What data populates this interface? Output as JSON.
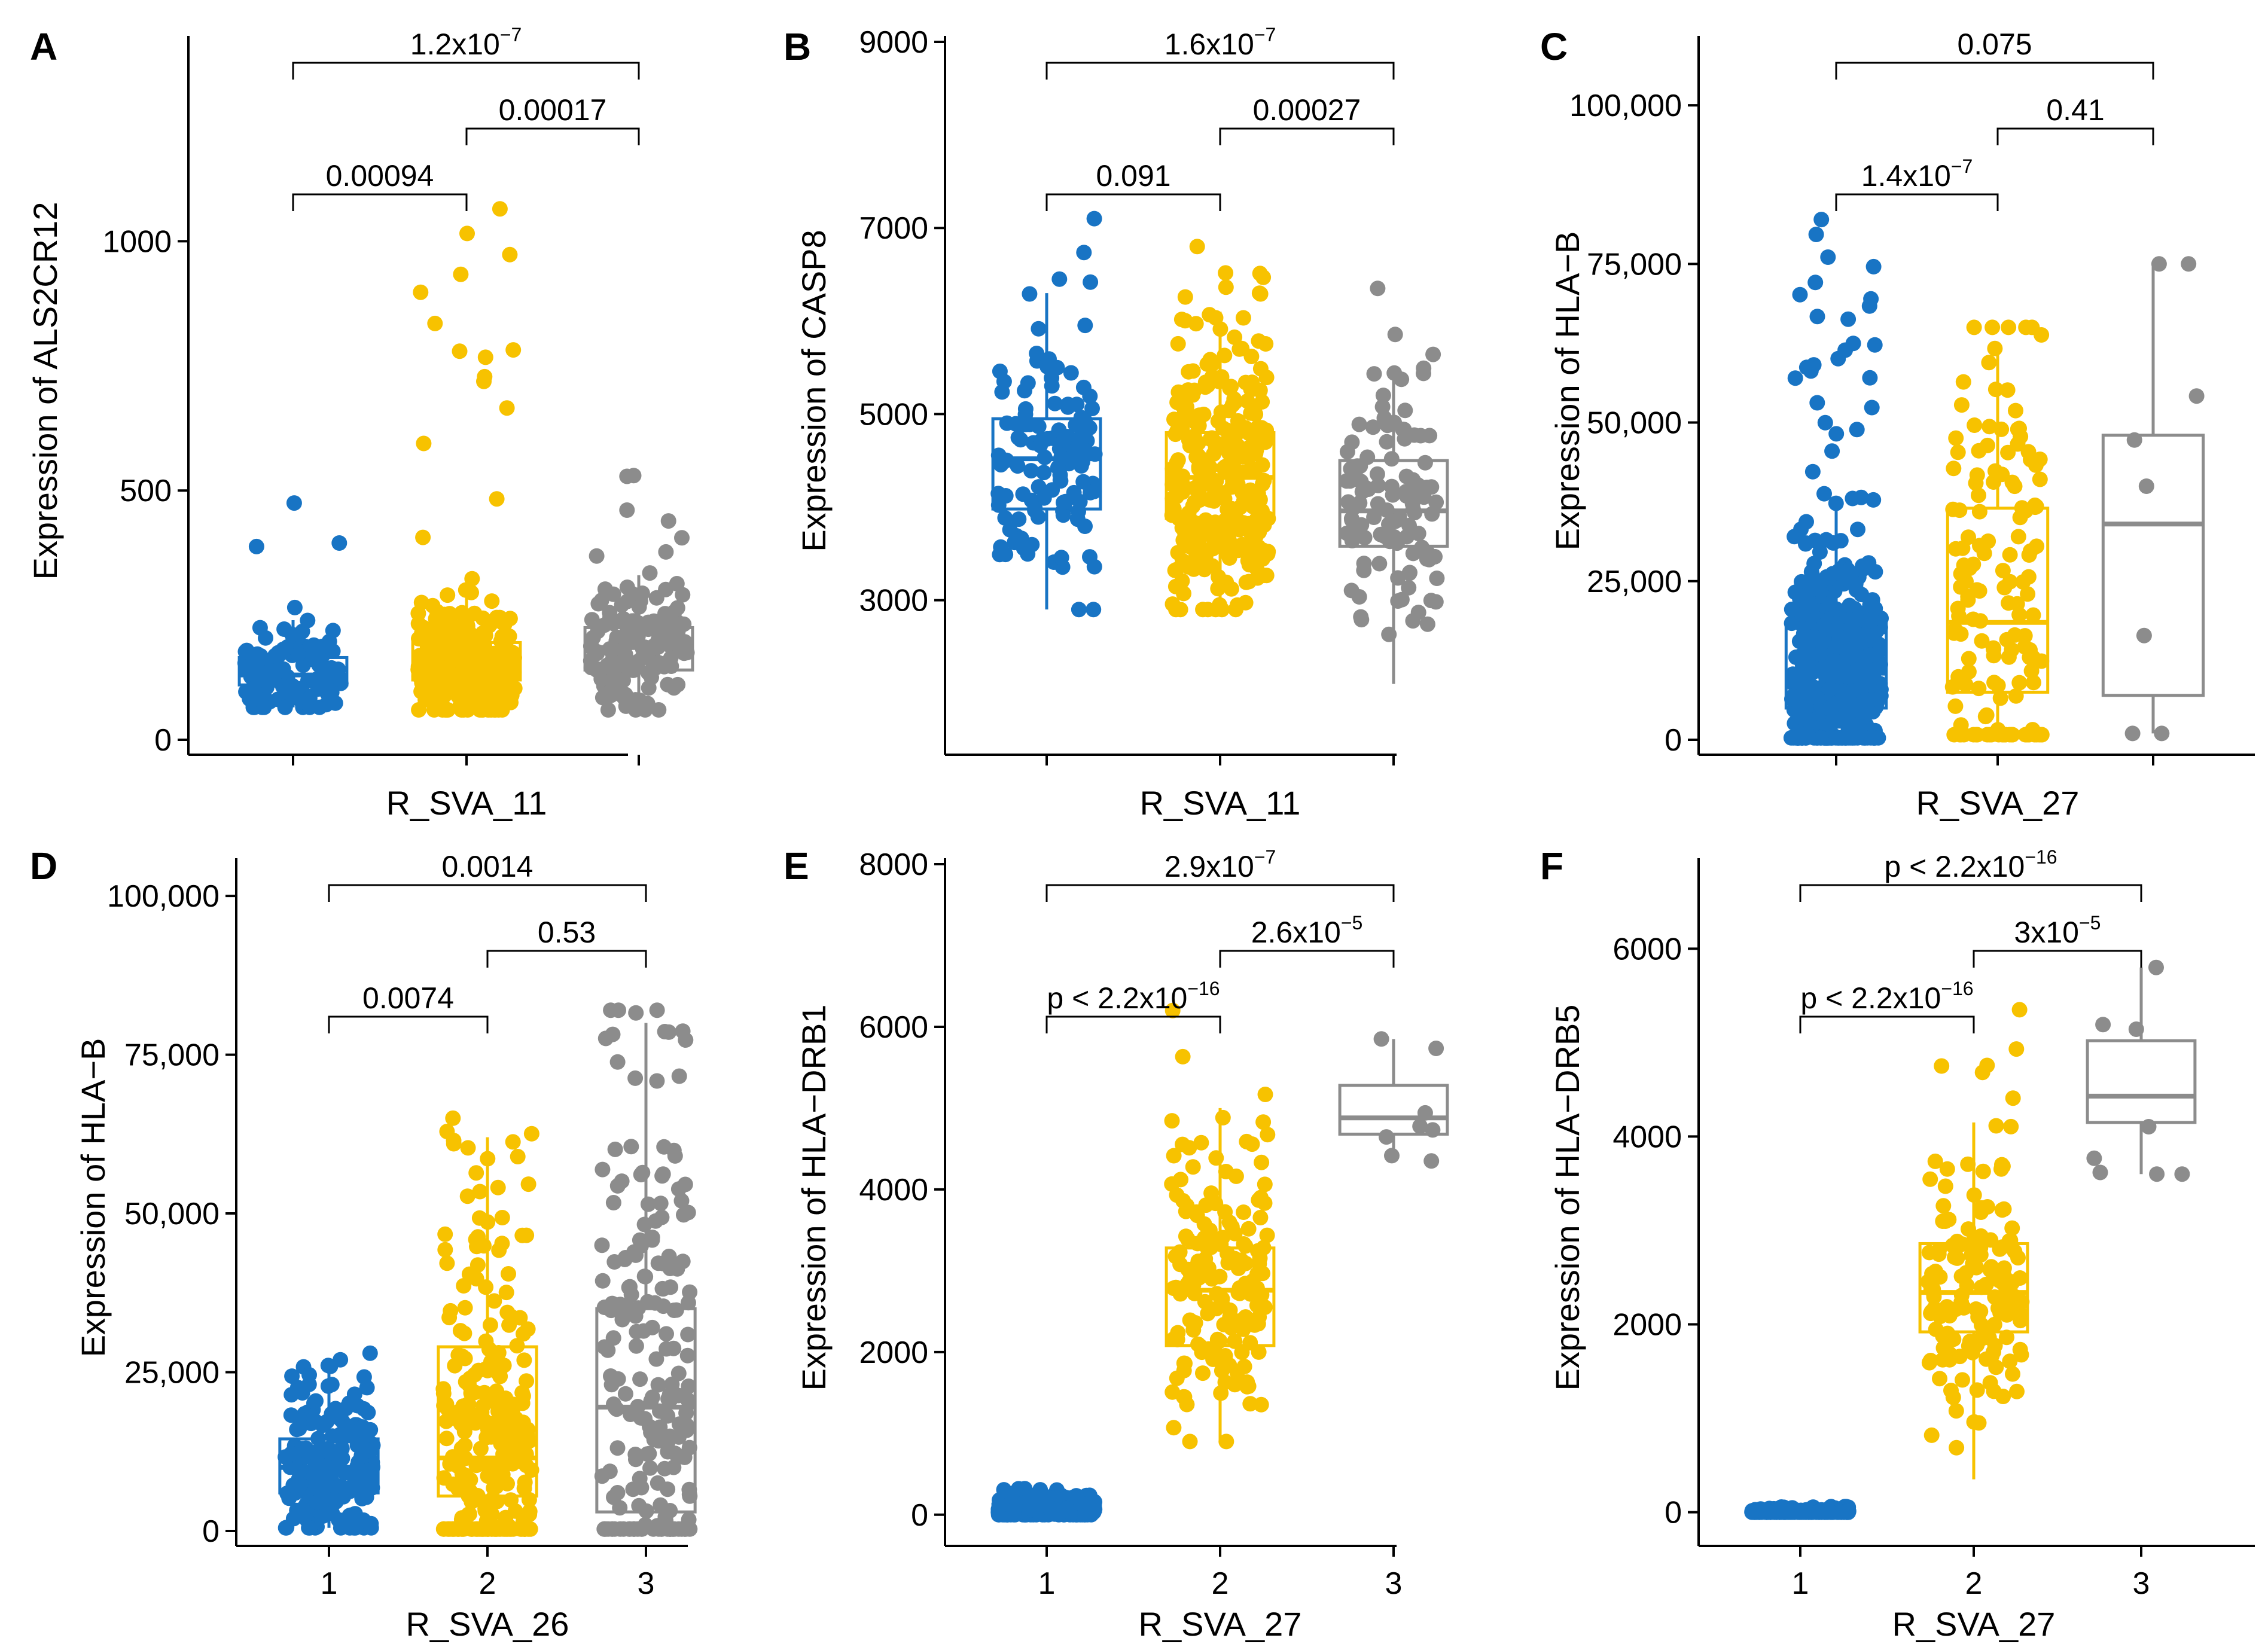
{
  "figure": {
    "title": "Boxplots of gene expression by R_SVA groups",
    "colors": {
      "group1": "#1874c4",
      "group2": "#f7c200",
      "group3": "#8c8c8c"
    }
  },
  "chart_data": [
    {
      "type": "box",
      "panel": "A",
      "xlabel": "R_SVA_11",
      "ylabel": "Expression of ALS2CR12",
      "ylim": [
        0,
        1400
      ],
      "yticks": [
        0,
        500,
        1000
      ],
      "ytick_labels": [
        "0",
        "500",
        "1000"
      ],
      "categories": [
        "",
        "",
        ""
      ],
      "groups": [
        {
          "name": "1",
          "q1": 110,
          "median": 130,
          "q3": 165,
          "whisker_low": 65,
          "whisker_high": 240,
          "n": 120,
          "max_outlier": 475
        },
        {
          "name": "2",
          "q1": 120,
          "median": 150,
          "q3": 195,
          "whisker_low": 60,
          "whisker_high": 300,
          "n": 300,
          "max_outlier": 1065
        },
        {
          "name": "3",
          "q1": 140,
          "median": 185,
          "q3": 225,
          "whisker_low": 60,
          "whisker_high": 330,
          "n": 150,
          "max_outlier": 530
        }
      ],
      "comparisons": [
        {
          "from": 1,
          "to": 2,
          "label": "0.00094"
        },
        {
          "from": 2,
          "to": 3,
          "label": "0.00017"
        },
        {
          "from": 1,
          "to": 3,
          "label": "1.2x10",
          "sup": "−7"
        }
      ]
    },
    {
      "type": "box",
      "panel": "B",
      "xlabel": "R_SVA_11",
      "ylabel": "Expression of CASP8",
      "ylim": [
        1500,
        9000
      ],
      "yticks": [
        3000,
        5000,
        7000,
        9000
      ],
      "ytick_labels": [
        "3000",
        "5000",
        "7000",
        "9000"
      ],
      "categories": [
        "",
        "",
        ""
      ],
      "groups": [
        {
          "name": "1",
          "q1": 3980,
          "median": 4520,
          "q3": 4950,
          "whisker_low": 2900,
          "whisker_high": 6300,
          "n": 120,
          "max_outlier": 7100
        },
        {
          "name": "2",
          "q1": 3880,
          "median": 4320,
          "q3": 4800,
          "whisker_low": 2900,
          "whisker_high": 6100,
          "n": 300,
          "max_outlier": 6800
        },
        {
          "name": "3",
          "q1": 3580,
          "median": 3960,
          "q3": 4500,
          "whisker_low": 2100,
          "whisker_high": 5500,
          "n": 110,
          "max_outlier": 6350
        }
      ],
      "comparisons": [
        {
          "from": 1,
          "to": 2,
          "label": "0.091"
        },
        {
          "from": 2,
          "to": 3,
          "label": "0.00027"
        },
        {
          "from": 1,
          "to": 3,
          "label": "1.6x10",
          "sup": "−7"
        }
      ]
    },
    {
      "type": "box",
      "panel": "C",
      "xlabel": "R_SVA_27",
      "ylabel": "Expression of HLA−B",
      "ylim": [
        0,
        110000
      ],
      "yticks": [
        0,
        25000,
        50000,
        75000,
        100000
      ],
      "ytick_labels": [
        "0",
        "25,000",
        "50,000",
        "75,000",
        "100,000"
      ],
      "categories": [
        "",
        "",
        ""
      ],
      "groups": [
        {
          "name": "1",
          "q1": 5000,
          "median": 10500,
          "q3": 18500,
          "whisker_low": 300,
          "whisker_high": 38000,
          "n": 450,
          "max_outlier": 82000
        },
        {
          "name": "2",
          "q1": 7500,
          "median": 18500,
          "q3": 36500,
          "whisker_low": 800,
          "whisker_high": 62000,
          "n": 150,
          "max_outlier": 65000
        },
        {
          "name": "3",
          "q1": 7000,
          "median": 34000,
          "q3": 48000,
          "whisker_low": 1000,
          "whisker_high": 75000,
          "n": 8,
          "max_outlier": 75000
        }
      ],
      "comparisons": [
        {
          "from": 1,
          "to": 2,
          "label": "1.4x10",
          "sup": "−7"
        },
        {
          "from": 2,
          "to": 3,
          "label": "0.41"
        },
        {
          "from": 1,
          "to": 3,
          "label": "0.075"
        }
      ]
    },
    {
      "type": "box",
      "panel": "D",
      "xlabel": "R_SVA_26",
      "ylabel": "Expression of HLA−B",
      "ylim": [
        0,
        105000
      ],
      "yticks": [
        0,
        25000,
        50000,
        75000,
        100000
      ],
      "ytick_labels": [
        "0",
        "25,000",
        "50,000",
        "75,000",
        "100,000"
      ],
      "categories": [
        "1",
        "2",
        "3"
      ],
      "groups": [
        {
          "name": "1",
          "q1": 6000,
          "median": 10000,
          "q3": 14500,
          "whisker_low": 500,
          "whisker_high": 26000,
          "n": 200,
          "max_outlier": 28000
        },
        {
          "name": "2",
          "q1": 5500,
          "median": 11500,
          "q3": 29000,
          "whisker_low": 300,
          "whisker_high": 62000,
          "n": 260,
          "max_outlier": 65000
        },
        {
          "name": "3",
          "q1": 3000,
          "median": 19500,
          "q3": 35000,
          "whisker_low": 300,
          "whisker_high": 80000,
          "n": 200,
          "max_outlier": 82000
        }
      ],
      "comparisons": [
        {
          "from": 1,
          "to": 2,
          "label": "0.0074"
        },
        {
          "from": 2,
          "to": 3,
          "label": "0.53"
        },
        {
          "from": 1,
          "to": 3,
          "label": "0.0014"
        }
      ]
    },
    {
      "type": "box",
      "panel": "E",
      "xlabel": "R_SVA_27",
      "ylabel": "Expression of HLA−DRB1",
      "ylim": [
        -200,
        8000
      ],
      "yticks": [
        0,
        2000,
        4000,
        6000,
        8000
      ],
      "ytick_labels": [
        "0",
        "2000",
        "4000",
        "6000",
        "8000"
      ],
      "categories": [
        "1",
        "2",
        "3"
      ],
      "groups": [
        {
          "name": "1",
          "q1": 40,
          "median": 90,
          "q3": 130,
          "whisker_low": 0,
          "whisker_high": 250,
          "n": 350,
          "max_outlier": 320
        },
        {
          "name": "2",
          "q1": 2080,
          "median": 2760,
          "q3": 3280,
          "whisker_low": 900,
          "whisker_high": 5000,
          "n": 160,
          "max_outlier": 6200
        },
        {
          "name": "3",
          "q1": 4680,
          "median": 4880,
          "q3": 5280,
          "whisker_low": 4350,
          "whisker_high": 5850,
          "n": 8,
          "max_outlier": 5850
        }
      ],
      "comparisons": [
        {
          "from": 1,
          "to": 2,
          "label": "p < 2.2x10",
          "sup": "−16"
        },
        {
          "from": 2,
          "to": 3,
          "label": "2.6x10",
          "sup": "−5"
        },
        {
          "from": 1,
          "to": 3,
          "label": "2.9x10",
          "sup": "−7"
        }
      ]
    },
    {
      "type": "box",
      "panel": "F",
      "xlabel": "R_SVA_27",
      "ylabel": "Expression of HLA−DRB5",
      "ylim": [
        -200,
        6900
      ],
      "yticks": [
        0,
        2000,
        4000,
        6000
      ],
      "ytick_labels": [
        "0",
        "2000",
        "4000",
        "6000"
      ],
      "categories": [
        "1",
        "2",
        "3"
      ],
      "groups": [
        {
          "name": "1",
          "q1": 0,
          "median": 5,
          "q3": 15,
          "whisker_low": 0,
          "whisker_high": 40,
          "n": 300,
          "max_outlier": 60
        },
        {
          "name": "2",
          "q1": 1920,
          "median": 2340,
          "q3": 2860,
          "whisker_low": 350,
          "whisker_high": 4150,
          "n": 160,
          "max_outlier": 5350
        },
        {
          "name": "3",
          "q1": 4150,
          "median": 4430,
          "q3": 5020,
          "whisker_low": 3600,
          "whisker_high": 5800,
          "n": 8,
          "max_outlier": 5800
        }
      ],
      "comparisons": [
        {
          "from": 1,
          "to": 2,
          "label": "p < 2.2x10",
          "sup": "−16"
        },
        {
          "from": 2,
          "to": 3,
          "label": "3x10",
          "sup": "−5"
        },
        {
          "from": 1,
          "to": 3,
          "label": "p < 2.2x10",
          "sup": "−16"
        }
      ]
    }
  ]
}
